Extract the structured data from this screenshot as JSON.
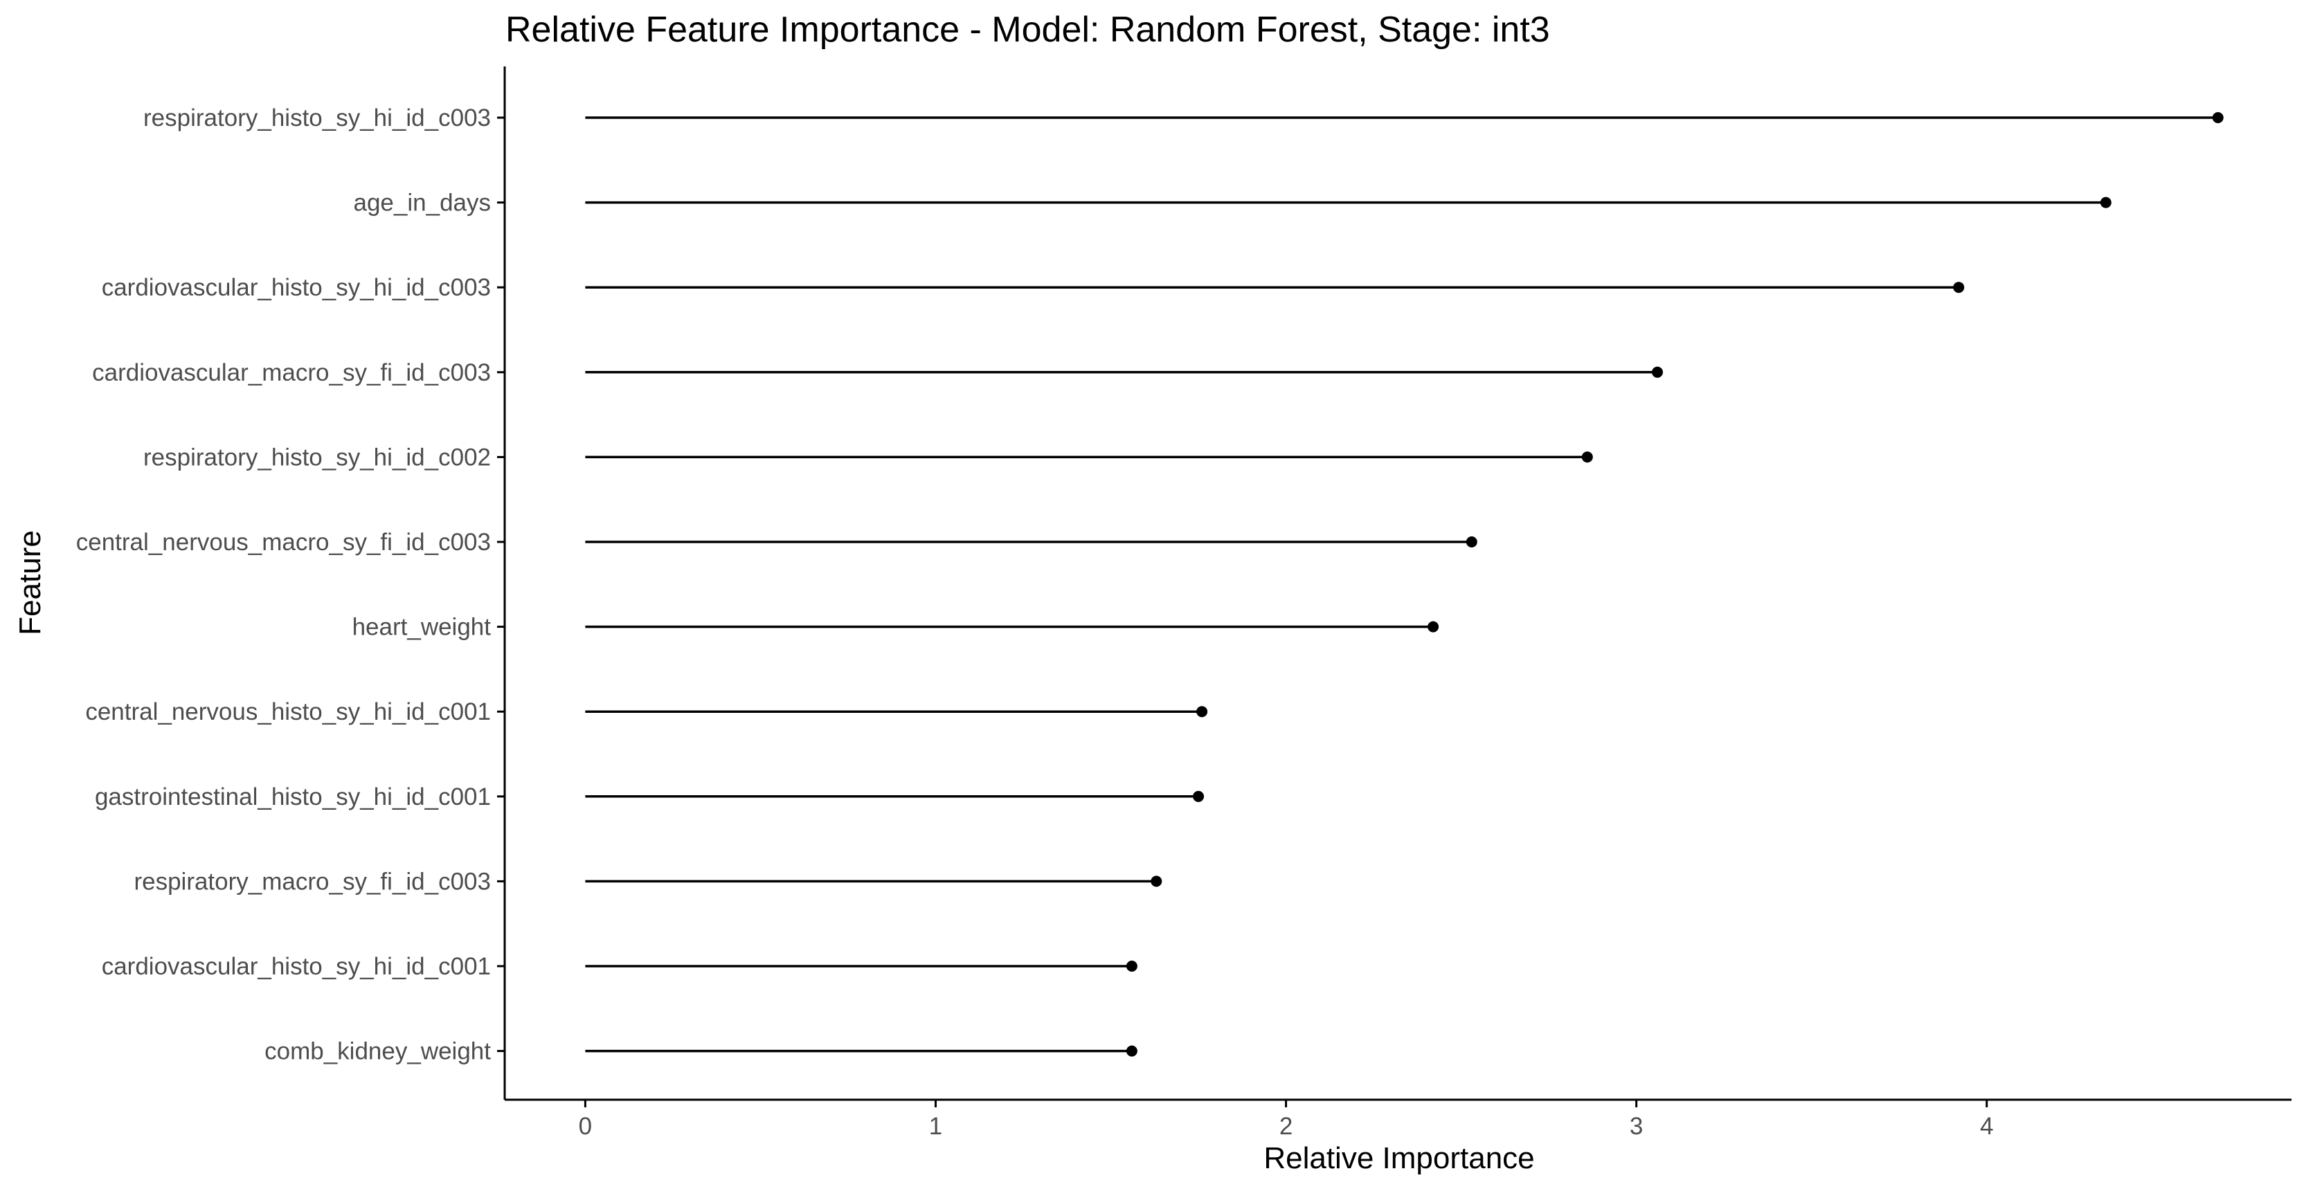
{
  "chart_data": {
    "type": "lollipop",
    "title": "Relative Feature Importance - Model: Random Forest, Stage: int3",
    "xlabel": "Relative Importance",
    "ylabel": "Feature",
    "xlim": [
      -0.23,
      4.87
    ],
    "x_ticks": [
      0,
      1,
      2,
      3,
      4
    ],
    "grid": false,
    "categories": [
      "respiratory_histo_sy_hi_id_c003",
      "age_in_days",
      "cardiovascular_histo_sy_hi_id_c003",
      "cardiovascular_macro_sy_fi_id_c003",
      "respiratory_histo_sy_hi_id_c002",
      "central_nervous_macro_sy_fi_id_c003",
      "heart_weight",
      "central_nervous_histo_sy_hi_id_c001",
      "gastrointestinal_histo_sy_hi_id_c001",
      "respiratory_macro_sy_fi_id_c003",
      "cardiovascular_histo_sy_hi_id_c001",
      "comb_kidney_weight"
    ],
    "values": [
      4.66,
      4.34,
      3.92,
      3.06,
      2.86,
      2.53,
      2.42,
      1.76,
      1.75,
      1.63,
      1.56,
      1.56
    ]
  },
  "colors": {
    "stem": "#000000",
    "point": "#000000",
    "axis": "#000000",
    "tick_text": "#4d4d4d"
  }
}
